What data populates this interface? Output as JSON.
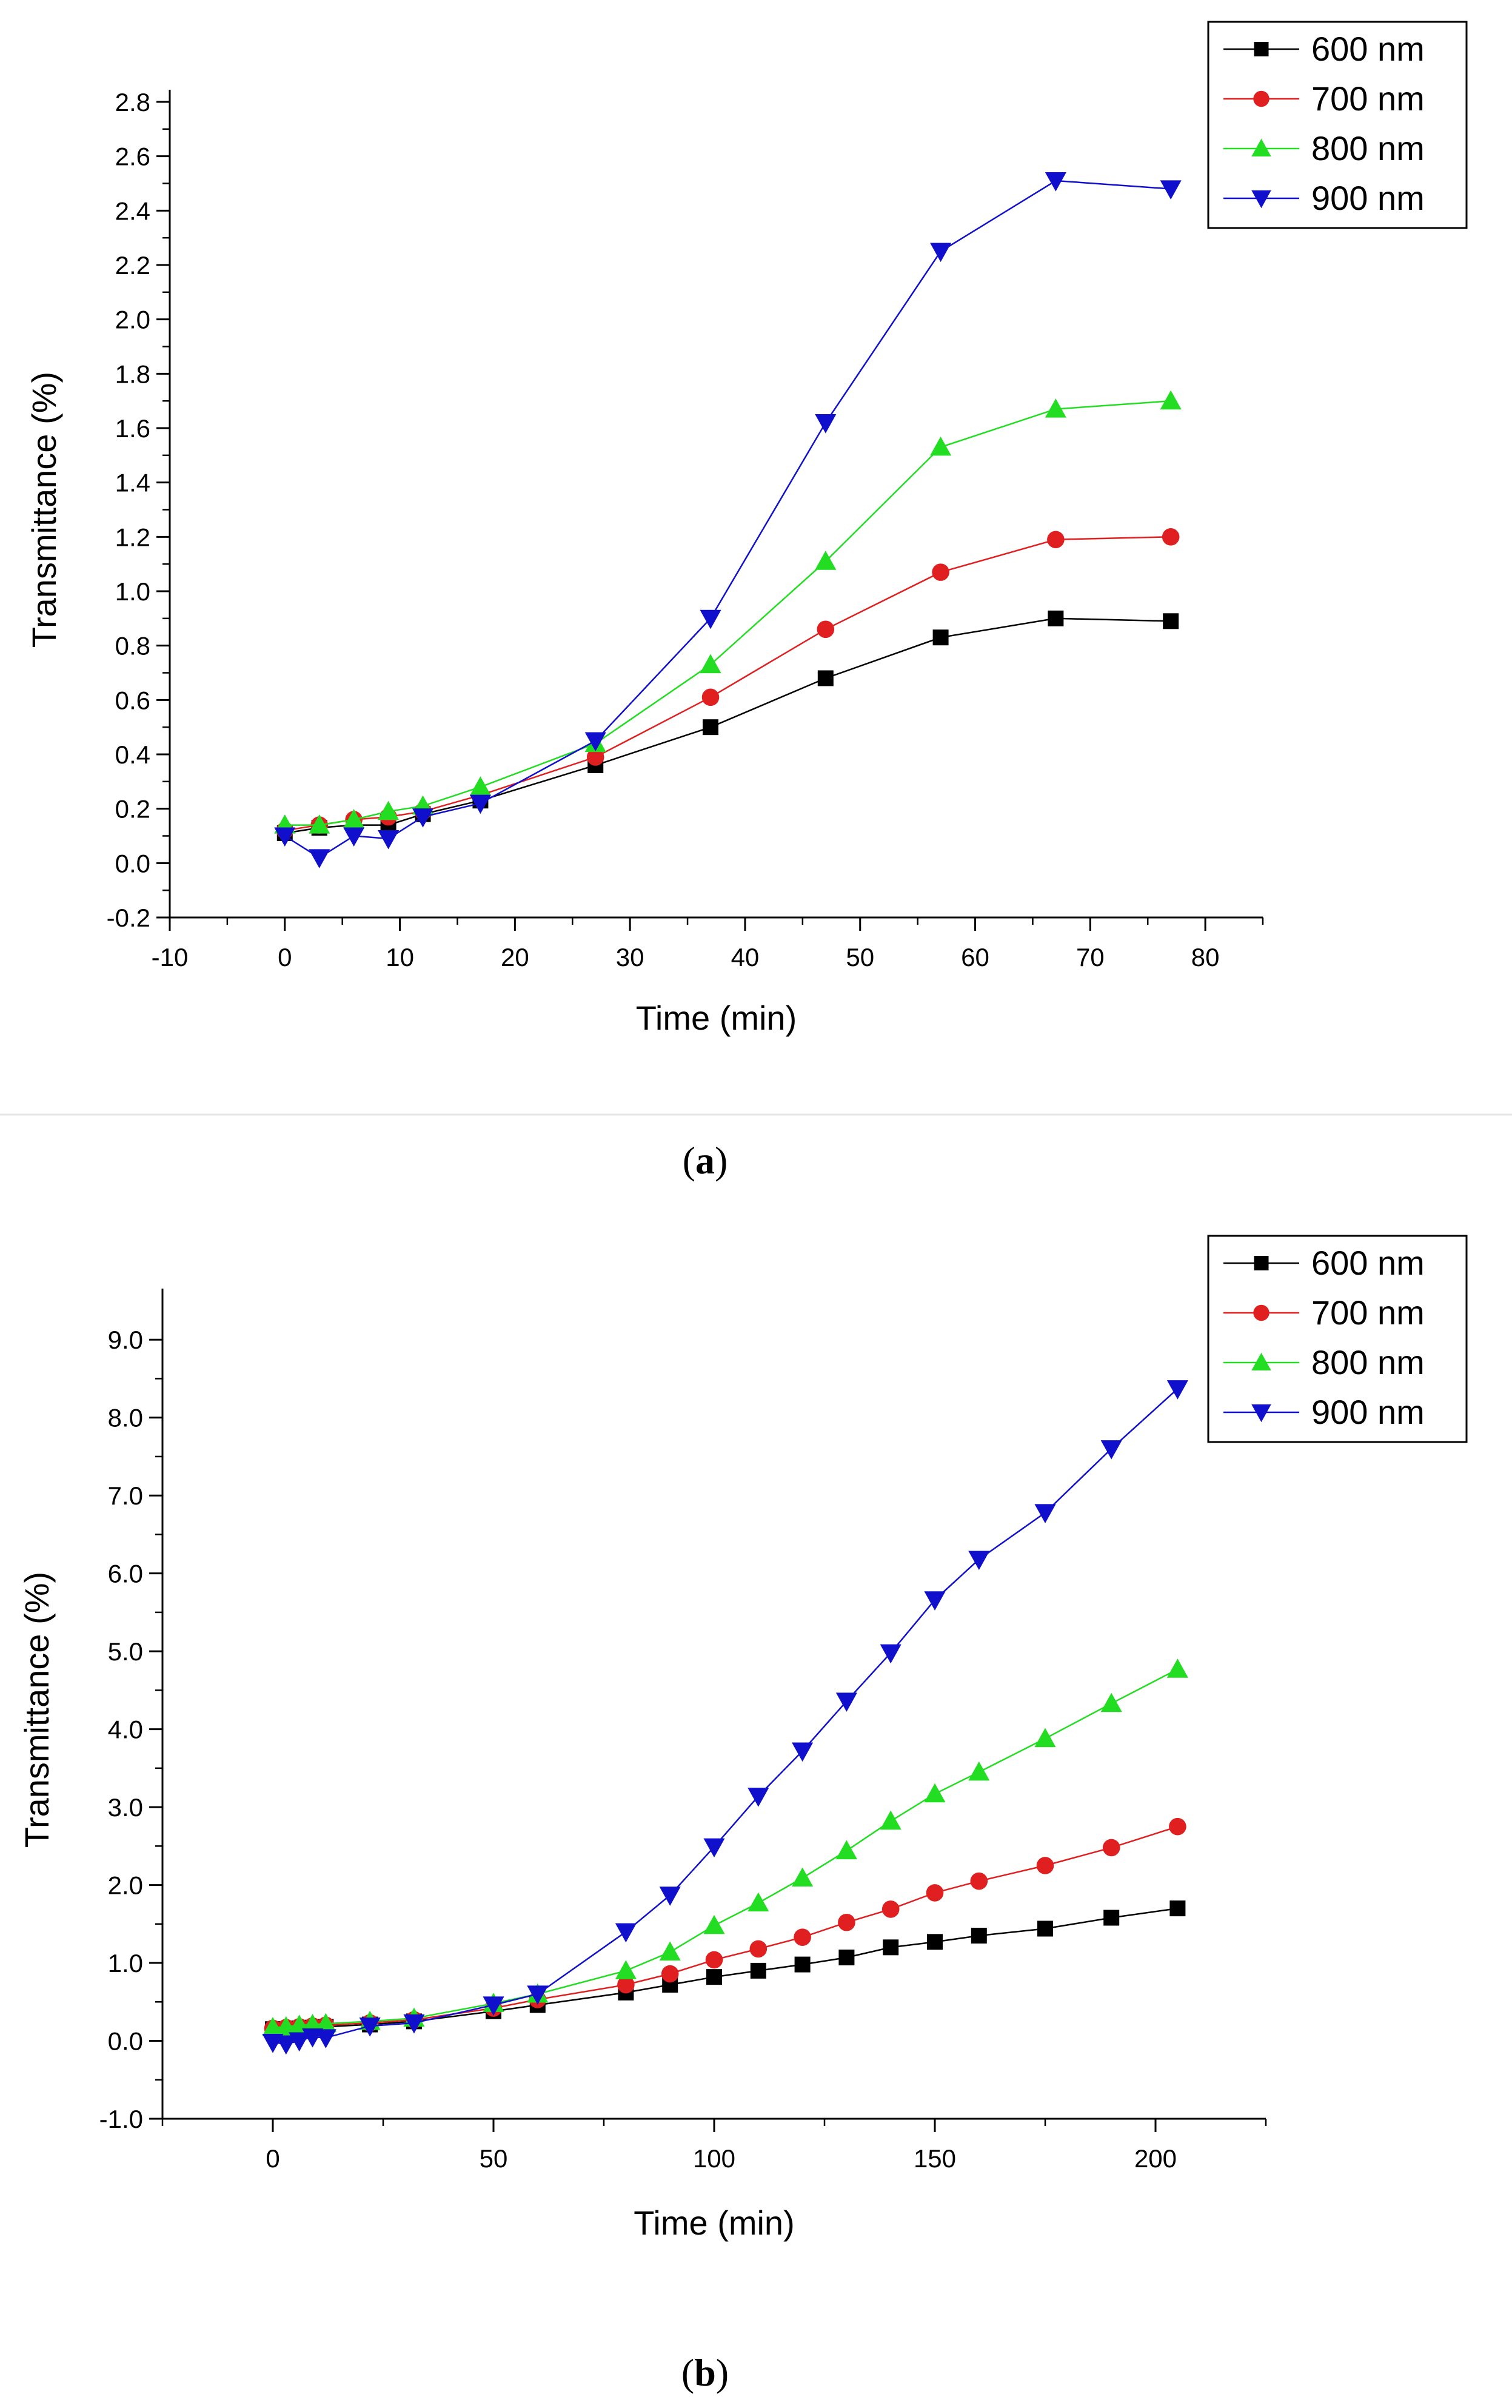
{
  "charts": [
    {
      "id": "a",
      "type": "line",
      "caption_open": "(",
      "caption_letter": "a",
      "caption_close": ")",
      "xlabel": "Time (min)",
      "ylabel": "Transmittance (%)",
      "xlim": [
        -10,
        85
      ],
      "ylim": [
        -0.2,
        2.8
      ],
      "xticks": [
        -10,
        0,
        10,
        20,
        30,
        40,
        50,
        60,
        70,
        80
      ],
      "xtick_labels": [
        "-10",
        "0",
        "10",
        "20",
        "30",
        "40",
        "50",
        "60",
        "70",
        "80"
      ],
      "yticks": [
        -0.2,
        0.0,
        0.2,
        0.4,
        0.6,
        0.8,
        1.0,
        1.2,
        1.4,
        1.6,
        1.8,
        2.0,
        2.2,
        2.4,
        2.6,
        2.8
      ],
      "ytick_labels": [
        "-0.2",
        "0.0",
        "0.2",
        "0.4",
        "0.6",
        "0.8",
        "1.0",
        "1.2",
        "1.4",
        "1.6",
        "1.8",
        "2.0",
        "2.2",
        "2.4",
        "2.6",
        "2.8"
      ],
      "legend_position": "top-right",
      "x": [
        0,
        3,
        6,
        9,
        12,
        17,
        27,
        37,
        47,
        57,
        67,
        77
      ],
      "series": [
        {
          "name": "600 nm",
          "color": "#000000",
          "marker": "square",
          "values": [
            0.11,
            0.13,
            0.14,
            0.14,
            0.18,
            0.23,
            0.36,
            0.5,
            0.68,
            0.83,
            0.9,
            0.89
          ]
        },
        {
          "name": "700 nm",
          "color": "#e02020",
          "marker": "circle",
          "values": [
            0.12,
            0.14,
            0.16,
            0.17,
            0.19,
            0.25,
            0.39,
            0.61,
            0.86,
            1.07,
            1.19,
            1.2
          ]
        },
        {
          "name": "800 nm",
          "color": "#22dd22",
          "marker": "triangle-up",
          "values": [
            0.14,
            0.14,
            0.16,
            0.19,
            0.21,
            0.28,
            0.44,
            0.73,
            1.11,
            1.53,
            1.67,
            1.7
          ]
        },
        {
          "name": "900 nm",
          "color": "#1010cc",
          "marker": "triangle-down",
          "values": [
            0.1,
            0.02,
            0.1,
            0.09,
            0.17,
            0.22,
            0.45,
            0.9,
            1.62,
            2.25,
            2.51,
            2.48
          ]
        }
      ]
    },
    {
      "id": "b",
      "type": "line",
      "caption_open": "(",
      "caption_letter": "b",
      "caption_close": ")",
      "xlabel": "Time (min)",
      "ylabel": "Transmittance (%)",
      "xlim": [
        -25,
        225
      ],
      "ylim": [
        -1.0,
        9.5
      ],
      "xticks": [
        0,
        50,
        100,
        150,
        200
      ],
      "xtick_labels": [
        "0",
        "50",
        "100",
        "150",
        "200"
      ],
      "yticks": [
        -1.0,
        0.0,
        1.0,
        2.0,
        3.0,
        4.0,
        5.0,
        6.0,
        7.0,
        8.0,
        9.0
      ],
      "ytick_labels": [
        "-1.0",
        "0.0",
        "1.0",
        "2.0",
        "3.0",
        "4.0",
        "5.0",
        "6.0",
        "7.0",
        "8.0",
        "9.0"
      ],
      "legend_position": "top-right",
      "x": [
        0,
        3,
        6,
        9,
        12,
        22,
        32,
        50,
        60,
        80,
        90,
        100,
        110,
        120,
        130,
        140,
        150,
        160,
        175,
        190,
        205
      ],
      "series": [
        {
          "name": "600 nm",
          "color": "#000000",
          "marker": "square",
          "values": [
            0.15,
            0.15,
            0.16,
            0.17,
            0.18,
            0.21,
            0.25,
            0.38,
            0.46,
            0.62,
            0.72,
            0.82,
            0.9,
            0.98,
            1.07,
            1.2,
            1.27,
            1.35,
            1.44,
            1.58,
            1.7
          ]
        },
        {
          "name": "700 nm",
          "color": "#e02020",
          "marker": "circle",
          "values": [
            0.16,
            0.17,
            0.18,
            0.19,
            0.2,
            0.23,
            0.27,
            0.42,
            0.53,
            0.72,
            0.86,
            1.04,
            1.18,
            1.33,
            1.52,
            1.69,
            1.9,
            2.05,
            2.25,
            2.48,
            2.75
          ]
        },
        {
          "name": "800 nm",
          "color": "#22dd22",
          "marker": "triangle-up",
          "values": [
            0.17,
            0.18,
            0.2,
            0.21,
            0.22,
            0.25,
            0.29,
            0.48,
            0.6,
            0.9,
            1.14,
            1.48,
            1.77,
            2.09,
            2.44,
            2.82,
            3.17,
            3.45,
            3.88,
            4.33,
            4.77
          ]
        },
        {
          "name": "900 nm",
          "color": "#1010cc",
          "marker": "triangle-down",
          "values": [
            -0.02,
            -0.04,
            0.0,
            0.05,
            0.04,
            0.19,
            0.23,
            0.46,
            0.6,
            1.4,
            1.87,
            2.49,
            3.14,
            3.72,
            4.36,
            4.98,
            5.66,
            6.18,
            6.78,
            7.6,
            8.37
          ]
        }
      ]
    }
  ]
}
